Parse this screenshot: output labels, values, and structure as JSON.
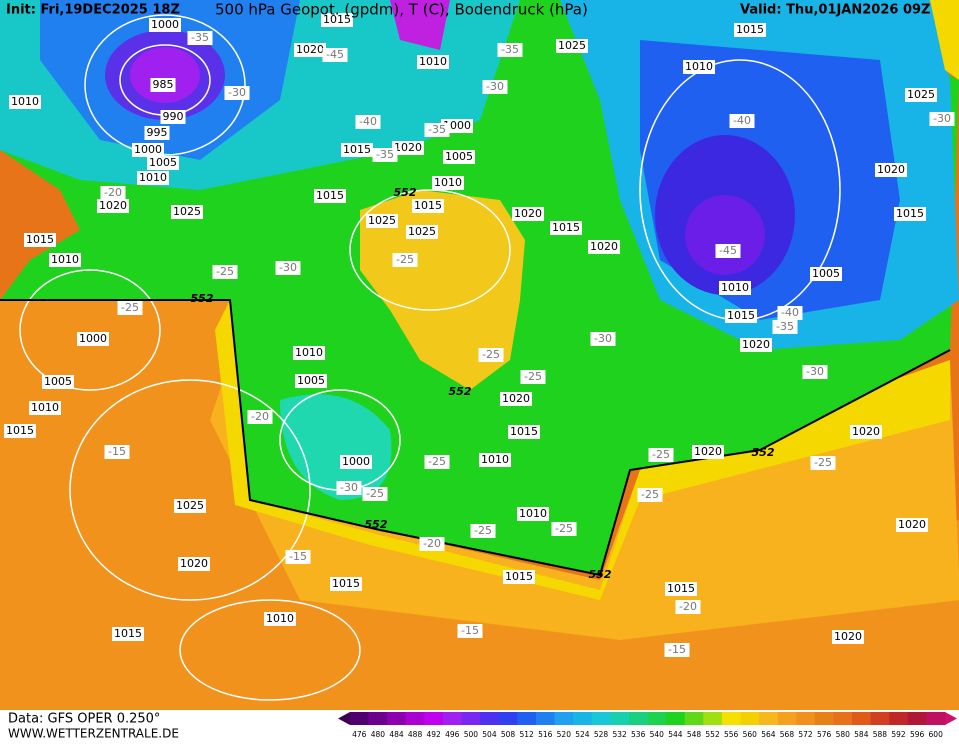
{
  "header": {
    "init": "Init: Fri,19DEC2025 18Z",
    "title": "500 hPa Geopot. (gpdm), T (C), Bodendruck (hPa)",
    "valid": "Valid: Thu,01JAN2026 09Z"
  },
  "footer": {
    "data": "Data: GFS OPER 0.250°",
    "site": "WWW.WETTERZENTRALE.DE"
  },
  "scale": {
    "labels": [
      "476",
      "480",
      "484",
      "488",
      "492",
      "496",
      "500",
      "504",
      "508",
      "512",
      "516",
      "520",
      "524",
      "528",
      "532",
      "536",
      "540",
      "544",
      "548",
      "552",
      "556",
      "560",
      "564",
      "568",
      "572",
      "576",
      "580",
      "584",
      "588",
      "592",
      "596",
      "600"
    ]
  },
  "map": {
    "isobar_labels": [
      "1000",
      "985",
      "990",
      "995",
      "1000",
      "1005",
      "1010",
      "1010",
      "1020",
      "1025",
      "1015",
      "1010",
      "1000",
      "1005",
      "1010",
      "1015",
      "1025",
      "1020",
      "1015",
      "1010",
      "1015",
      "1000",
      "1005",
      "1010",
      "1015",
      "1015",
      "1020",
      "1005",
      "1000",
      "1010",
      "1015",
      "1025",
      "1025",
      "1020",
      "1015",
      "1010",
      "1025",
      "1015",
      "1010",
      "1025",
      "1020",
      "1015",
      "1020",
      "1015",
      "1020",
      "1005",
      "1010",
      "1015",
      "1020",
      "1020",
      "1015",
      "1010",
      "1010",
      "1015",
      "1015",
      "1020",
      "1020",
      "1020",
      "1020"
    ],
    "temperature_labels": [
      "-35",
      "-45",
      "-30",
      "-35",
      "-30",
      "-40",
      "-35",
      "-35",
      "-25",
      "-30",
      "-20",
      "-25",
      "-25",
      "-20",
      "-15",
      "-25",
      "-25",
      "-30",
      "-25",
      "-25",
      "-30",
      "-20",
      "-25",
      "-25",
      "-15",
      "-15",
      "-20",
      "-15",
      "-25",
      "-25",
      "-25",
      "-40",
      "-45",
      "-40",
      "-35",
      "-30",
      "-30"
    ],
    "contour_552_labels": [
      "552",
      "552",
      "552",
      "552",
      "552",
      "552"
    ]
  }
}
